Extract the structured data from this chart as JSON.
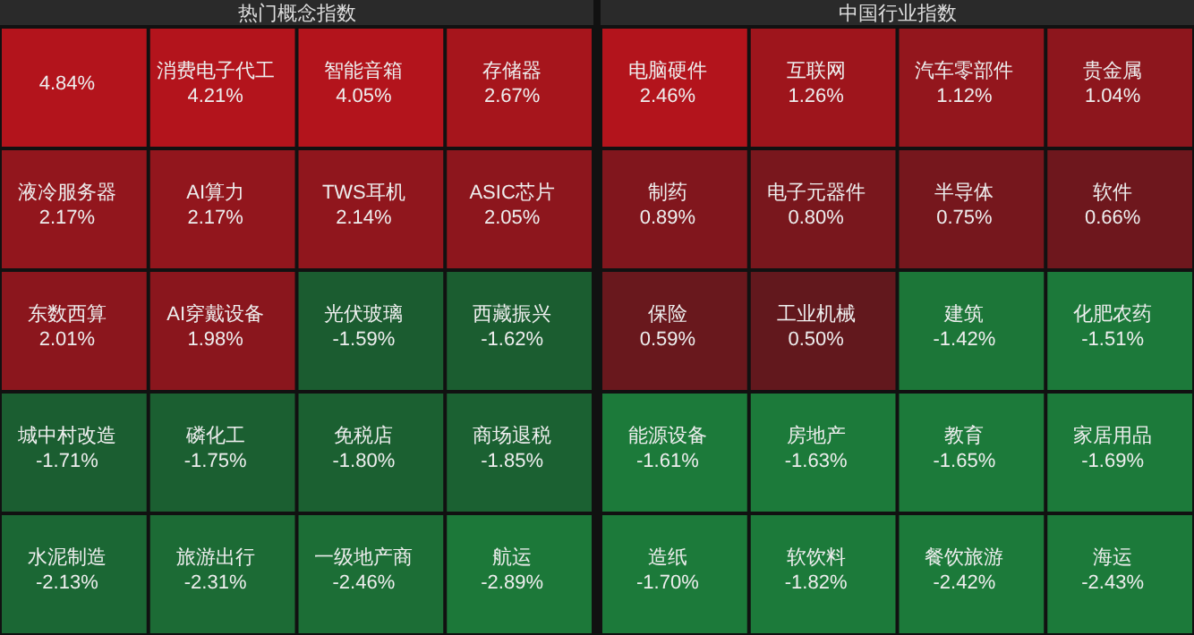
{
  "chart_data": [
    {
      "type": "other",
      "title": "热门概念指数",
      "categories": [
        null,
        "消费电子代工",
        "智能音箱",
        "存储器",
        "液冷服务器",
        "AI算力",
        "TWS耳机",
        "ASIC芯片",
        "东数西算",
        "AI穿戴设备",
        "光伏玻璃",
        "西藏振兴",
        "城中村改造",
        "磷化工",
        "免税店",
        "商场退税",
        "水泥制造",
        "旅游出行",
        "一级地产商",
        "航运"
      ],
      "values": [
        4.84,
        4.21,
        4.05,
        2.67,
        2.17,
        2.17,
        2.14,
        2.05,
        2.01,
        1.98,
        -1.59,
        -1.62,
        -1.71,
        -1.75,
        -1.8,
        -1.85,
        -2.13,
        -2.31,
        -2.46,
        -2.89
      ],
      "value_labels": [
        "4.84%",
        "4.21%",
        "4.05%",
        "2.67%",
        "2.17%",
        "2.17%",
        "2.14%",
        "2.05%",
        "2.01%",
        "1.98%",
        "-1.59%",
        "-1.62%",
        "-1.71%",
        "-1.75%",
        "-1.80%",
        "-1.85%",
        "-2.13%",
        "-2.31%",
        "-2.46%",
        "-2.89%"
      ]
    },
    {
      "type": "other",
      "title": "中国行业指数",
      "categories": [
        "电脑硬件",
        "互联网",
        "汽车零部件",
        "贵金属",
        "制药",
        "电子元器件",
        "半导体",
        "软件",
        "保险",
        "工业机械",
        "建筑",
        "化肥农药",
        "能源设备",
        "房地产",
        "教育",
        "家居用品",
        "造纸",
        "软饮料",
        "餐饮旅游",
        "海运"
      ],
      "values": [
        2.46,
        1.26,
        1.12,
        1.04,
        0.89,
        0.8,
        0.75,
        0.66,
        0.59,
        0.5,
        -1.42,
        -1.51,
        -1.61,
        -1.63,
        -1.65,
        -1.69,
        -1.7,
        -1.82,
        -2.42,
        -2.43
      ],
      "value_labels": [
        "2.46%",
        "1.26%",
        "1.12%",
        "1.04%",
        "0.89%",
        "0.80%",
        "0.75%",
        "0.66%",
        "0.59%",
        "0.50%",
        "-1.42%",
        "-1.51%",
        "-1.61%",
        "-1.63%",
        "-1.65%",
        "-1.69%",
        "-1.70%",
        "-1.82%",
        "-2.42%",
        "-2.43%"
      ]
    }
  ]
}
